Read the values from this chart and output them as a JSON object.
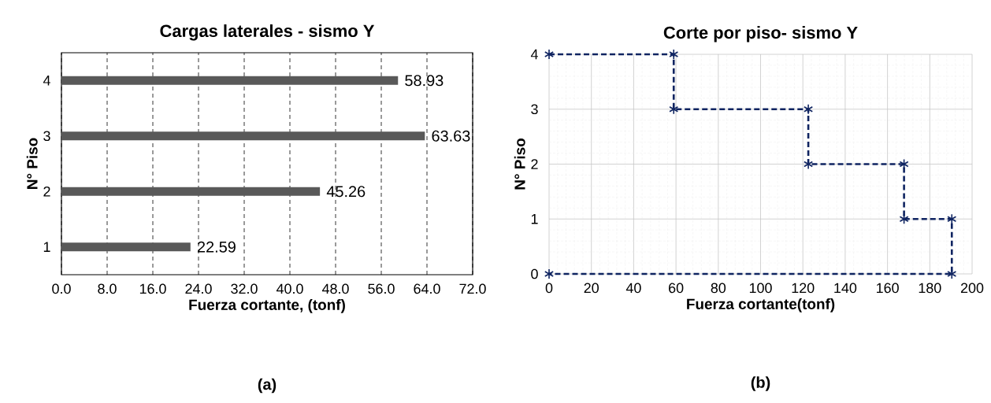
{
  "chart_data": [
    {
      "type": "bar",
      "orientation": "horizontal",
      "title": "Cargas laterales - sismo Y",
      "xlabel": "Fuerza cortante, (tonf)",
      "ylabel": "N° Piso",
      "categories": [
        "4",
        "3",
        "2",
        "1"
      ],
      "values": [
        58.93,
        63.63,
        45.26,
        22.59
      ],
      "color": "#595959",
      "data_labels": true,
      "xlim": [
        0,
        72
      ],
      "xticks": [
        {
          "value": 0,
          "label": "0.0"
        },
        {
          "value": 8,
          "label": "8.0"
        },
        {
          "value": 16,
          "label": "16.0"
        },
        {
          "value": 24,
          "label": "24.0"
        },
        {
          "value": 32,
          "label": "32.0"
        },
        {
          "value": 40,
          "label": "40.0"
        },
        {
          "value": 48,
          "label": "48.0"
        },
        {
          "value": 56,
          "label": "56.0"
        },
        {
          "value": 64,
          "label": "64.0"
        },
        {
          "value": 72,
          "label": "72.0"
        }
      ],
      "grid": "x",
      "annotations": [
        "(a)"
      ]
    },
    {
      "type": "line",
      "title": "Corte por piso- sismo Y",
      "xlabel": "Fuerza cortante(tonf)",
      "ylabel": "N° Piso",
      "x": [
        0,
        58.93,
        58.93,
        122.56,
        122.56,
        167.82,
        167.82,
        190.41,
        190.41,
        0
      ],
      "values": [
        4,
        4,
        3,
        3,
        2,
        2,
        1,
        1,
        0,
        0
      ],
      "color": "#0f2461",
      "marker": "cross",
      "line_style": "dashed",
      "xlim": [
        0,
        200
      ],
      "xticks": [
        0,
        20,
        40,
        60,
        80,
        100,
        120,
        140,
        160,
        180,
        200
      ],
      "ylim": [
        0,
        4
      ],
      "yticks": [
        0,
        1,
        2,
        3,
        4
      ],
      "grid": true,
      "annotations": [
        "(b)"
      ]
    }
  ]
}
